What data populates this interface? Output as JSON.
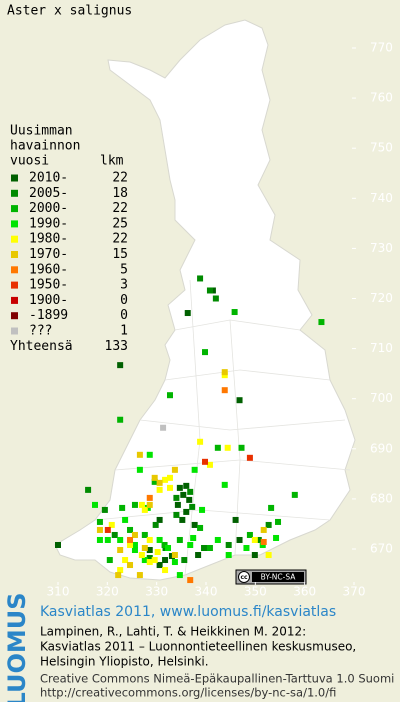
{
  "title": "Aster x salignus",
  "legend": {
    "heading": [
      "Uusimman",
      "havainnon"
    ],
    "col_year": "vuosi",
    "col_count": "lkm",
    "items": [
      {
        "label": "2010-",
        "count": 22,
        "color": "#006000",
        "squares": [
          [
            341.4,
            721.6
          ],
          [
            336.3,
            717.1
          ],
          [
            334.7,
            682.2
          ],
          [
            336,
            682.6
          ],
          [
            335.4,
            680.8
          ],
          [
            336.6,
            679.8
          ],
          [
            334.3,
            678.8
          ],
          [
            336,
            677.4
          ],
          [
            335.2,
            675.8
          ],
          [
            337.7,
            674.8
          ],
          [
            330.6,
            675.8
          ],
          [
            310,
            670.8
          ],
          [
            328.6,
            669.8
          ],
          [
            331.7,
            667.8
          ],
          [
            333.1,
            668.6
          ],
          [
            330.6,
            666.8
          ],
          [
            338.4,
            668.8
          ],
          [
            346.8,
            671.8
          ],
          [
            349.9,
            668.8
          ],
          [
            346,
            675.8
          ],
          [
            346.8,
            699.7
          ],
          [
            322.6,
            706.7
          ]
        ]
      },
      {
        "label": "2005-",
        "count": 18,
        "color": "#008a00",
        "squares": [
          [
            342,
            720
          ],
          [
            340.8,
            721.6
          ],
          [
            338.8,
            724
          ],
          [
            336.8,
            681.4
          ],
          [
            334,
            680.2
          ],
          [
            337.2,
            678.4
          ],
          [
            334,
            676.8
          ],
          [
            329.8,
            674.8
          ],
          [
            328.6,
            668.2
          ],
          [
            331.8,
            670.2
          ],
          [
            335.6,
            667.8
          ],
          [
            339.6,
            670.2
          ],
          [
            344.6,
            670.8
          ],
          [
            350.7,
            671.8
          ],
          [
            352.7,
            674.8
          ],
          [
            316.1,
            681.8
          ],
          [
            319.5,
            677.8
          ],
          [
            321.5,
            672.8
          ]
        ]
      },
      {
        "label": "2000-",
        "count": 22,
        "color": "#00b400",
        "squares": [
          [
            345.8,
            717.3
          ],
          [
            363.4,
            715.3
          ],
          [
            342.4,
            690.2
          ],
          [
            329.6,
            683.4
          ],
          [
            325.6,
            678.8
          ],
          [
            323,
            678.2
          ],
          [
            318.5,
            675.4
          ],
          [
            324.6,
            673.8
          ],
          [
            327.6,
            672.8
          ],
          [
            334.7,
            671.8
          ],
          [
            338.8,
            674.2
          ],
          [
            340.8,
            670.2
          ],
          [
            348.9,
            672.8
          ],
          [
            354.6,
            675.4
          ],
          [
            358,
            680.8
          ],
          [
            353.2,
            678.2
          ],
          [
            347.2,
            690.2
          ],
          [
            332.7,
            700.7
          ],
          [
            339.8,
            709.3
          ],
          [
            322.6,
            695.8
          ],
          [
            331.6,
            670.8
          ],
          [
            320.5,
            667.8
          ]
        ]
      },
      {
        "label": "1990-",
        "count": 25,
        "color": "#00e400",
        "squares": [
          [
            332.3,
            670.2
          ],
          [
            333.7,
            667.4
          ],
          [
            336.8,
            670.8
          ],
          [
            327.6,
            667.8
          ],
          [
            325.6,
            669.8
          ],
          [
            322.6,
            671.8
          ],
          [
            323.6,
            675.8
          ],
          [
            317.5,
            678.8
          ],
          [
            320.1,
            671.8
          ],
          [
            328.2,
            678.2
          ],
          [
            339.2,
            677.8
          ],
          [
            342.4,
            671.8
          ],
          [
            348.2,
            670.2
          ],
          [
            354.2,
            672.2
          ],
          [
            351.5,
            670.8
          ],
          [
            326.6,
            685.8
          ],
          [
            328.6,
            688.8
          ],
          [
            337.7,
            685.8
          ],
          [
            343.8,
            682.8
          ],
          [
            318.5,
            671.8
          ],
          [
            325.6,
            670.8
          ],
          [
            330.6,
            671.8
          ],
          [
            344.6,
            668.8
          ],
          [
            334.7,
            664.8
          ],
          [
            337.4,
            672.2
          ]
        ]
      },
      {
        "label": "1980-",
        "count": 22,
        "color": "#ffff00",
        "squares": [
          [
            331.7,
            683.8
          ],
          [
            332.7,
            684.2
          ],
          [
            332.7,
            682.2
          ],
          [
            330.6,
            681.8
          ],
          [
            328.6,
            671.8
          ],
          [
            327,
            668.8
          ],
          [
            328.6,
            667.4
          ],
          [
            329.6,
            667.8
          ],
          [
            330.2,
            669.4
          ],
          [
            322.6,
            665.8
          ],
          [
            323.6,
            667.8
          ],
          [
            331.7,
            665.8
          ],
          [
            324.6,
            670.8
          ],
          [
            349.9,
            671.8
          ],
          [
            352.7,
            668.8
          ],
          [
            327.6,
            677.8
          ],
          [
            340.8,
            686.8
          ],
          [
            343.8,
            704.7
          ],
          [
            344.4,
            690.2
          ],
          [
            338.8,
            691.4
          ],
          [
            327,
            678.8
          ],
          [
            320.9,
            674.8
          ]
        ]
      },
      {
        "label": "1970-",
        "count": 15,
        "color": "#e8c800",
        "squares": [
          [
            343.8,
            705.3
          ],
          [
            333.7,
            685.8
          ],
          [
            329.6,
            684.2
          ],
          [
            330.6,
            683.2
          ],
          [
            333.7,
            668.8
          ],
          [
            326.6,
            664.8
          ],
          [
            324.6,
            666.8
          ],
          [
            322.6,
            669.8
          ],
          [
            318.5,
            673.8
          ],
          [
            327.6,
            670.2
          ],
          [
            351.7,
            673.8
          ],
          [
            328.6,
            678.8
          ],
          [
            326.6,
            688.8
          ],
          [
            322.2,
            664.8
          ],
          [
            325.6,
            672.8
          ]
        ]
      },
      {
        "label": "1960-",
        "count": 5,
        "color": "#ff7800",
        "squares": [
          [
            343.8,
            701.7
          ],
          [
            351.7,
            671.4
          ],
          [
            328.6,
            680.2
          ],
          [
            324.6,
            671.8
          ],
          [
            336.8,
            663.8
          ]
        ]
      },
      {
        "label": "1950-",
        "count": 3,
        "color": "#e83000",
        "squares": [
          [
            339.8,
            687.4
          ],
          [
            320.1,
            673.8
          ],
          [
            348.9,
            688.2
          ]
        ]
      },
      {
        "label": "1900-",
        "count": 0,
        "color": "#c80000",
        "squares": []
      },
      {
        "label": "-1899",
        "count": 0,
        "color": "#800000",
        "squares": []
      },
      {
        "label": "???",
        "count": 1,
        "color": "#c0c0c0",
        "squares": [
          [
            331.3,
            694.2
          ]
        ]
      }
    ],
    "total_label": "Yhteensä",
    "total": 133
  },
  "map": {
    "northing_ticks": [
      770,
      760,
      750,
      740,
      730,
      720,
      710,
      700,
      690,
      680,
      670
    ],
    "easting_ticks": [
      310,
      320,
      330,
      340,
      350,
      360,
      370
    ]
  },
  "license_badge": "BY-NC-SA",
  "logo": "LUOMUS",
  "footer": {
    "link": "Kasviatlas 2011, www.luomus.fi/kasviatlas",
    "citation": [
      "Lampinen, R., Lahti, T. & Heikkinen M. 2012:",
      "Kasviatlas 2011 – Luonnontieteellinen keskusmuseo,",
      "Helsingin Yliopisto, Helsinki."
    ],
    "license": [
      "Creative Commons Nimeä-Epäkaupallinen-Tarttuva 1.0 Suomi",
      "http://creativecommons.org/licenses/by-nc-sa/1.0/fi"
    ]
  }
}
